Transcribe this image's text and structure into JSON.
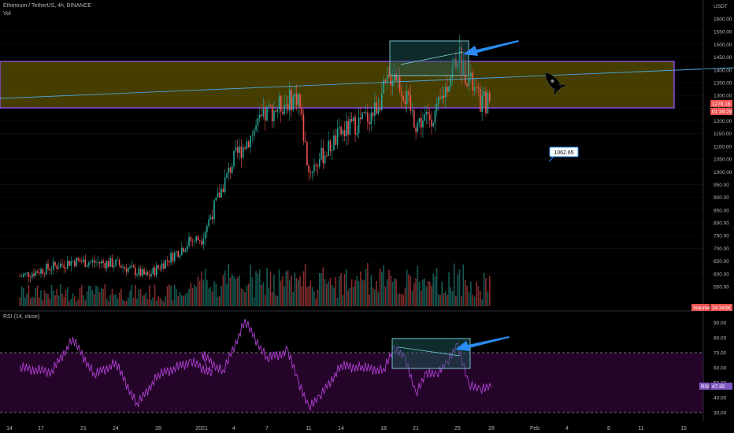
{
  "header": {
    "symbol_line": "Ethereum / TetherUS, 4h, BINANCE",
    "vol_label": "Vol"
  },
  "chart_data": [
    {
      "type": "candlestick",
      "title": "Ethereum / TetherUS, 4h, BINANCE",
      "currency": "USDT",
      "ylim": [
        500,
        1650
      ],
      "y_ticks": [
        550,
        600,
        650,
        700,
        750,
        800,
        850,
        900,
        950,
        1000,
        1050,
        1100,
        1150,
        1200,
        1250,
        1300,
        1350,
        1400,
        1450,
        1500,
        1550,
        1600
      ],
      "x_ticks": [
        "14",
        "17",
        "21",
        "24",
        "28",
        "2021",
        "4",
        "7",
        "11",
        "14",
        "18",
        "21",
        "25",
        "28",
        "Feb",
        "4",
        "8",
        "11",
        "15"
      ],
      "last_price": "1278.18",
      "countdown": "01:39:29",
      "volume_badge": "Volume",
      "volume_value": "24.343K",
      "annotations": [
        {
          "type": "price_label",
          "text": "1062.65"
        }
      ],
      "ohlc_anchors": [
        {
          "d": "Dec 12",
          "c": 590
        },
        {
          "d": "Dec 17",
          "c": 650
        },
        {
          "d": "Dec 21",
          "c": 640
        },
        {
          "d": "Dec 24",
          "c": 590
        },
        {
          "d": "Dec 28",
          "c": 730
        },
        {
          "d": "Jan 1",
          "c": 740
        },
        {
          "d": "Jan 4",
          "c": 1050
        },
        {
          "d": "Jan 7",
          "c": 1230
        },
        {
          "d": "Jan 10",
          "c": 1300
        },
        {
          "d": "Jan 11",
          "c": 1000
        },
        {
          "d": "Jan 14",
          "c": 1150
        },
        {
          "d": "Jan 17",
          "c": 1230
        },
        {
          "d": "Jan 19",
          "c": 1400
        },
        {
          "d": "Jan 21",
          "c": 1190
        },
        {
          "d": "Jan 23",
          "c": 1230
        },
        {
          "d": "Jan 25",
          "c": 1460
        },
        {
          "d": "Jan 27",
          "c": 1270
        },
        {
          "d": "Jan 28",
          "c": 1278
        }
      ]
    },
    {
      "type": "line",
      "title": "RSI (14, close)",
      "ylim": [
        25,
        95
      ],
      "y_ticks": [
        30,
        40,
        50,
        60,
        70,
        80,
        90
      ],
      "badge_label": "RSI",
      "last_value": "47.35",
      "x": [
        "Dec 12",
        "Dec 15",
        "Dec 17",
        "Dec 19",
        "Dec 21",
        "Dec 23",
        "Dec 25",
        "Dec 28",
        "Dec 30",
        "Jan 1",
        "Jan 3",
        "Jan 5",
        "Jan 7",
        "Jan 9",
        "Jan 10",
        "Jan 11",
        "Jan 12",
        "Jan 14",
        "Jan 16",
        "Jan 18",
        "Jan 19",
        "Jan 20",
        "Jan 21",
        "Jan 22",
        "Jan 23",
        "Jan 24",
        "Jan 25",
        "Jan 26",
        "Jan 27",
        "Jan 28"
      ],
      "values": [
        60,
        57,
        79,
        55,
        63,
        35,
        55,
        64,
        56,
        69,
        57,
        91,
        66,
        71,
        50,
        33,
        40,
        61,
        60,
        58,
        73,
        66,
        42,
        56,
        55,
        63,
        75,
        48,
        45,
        47
      ]
    }
  ]
}
